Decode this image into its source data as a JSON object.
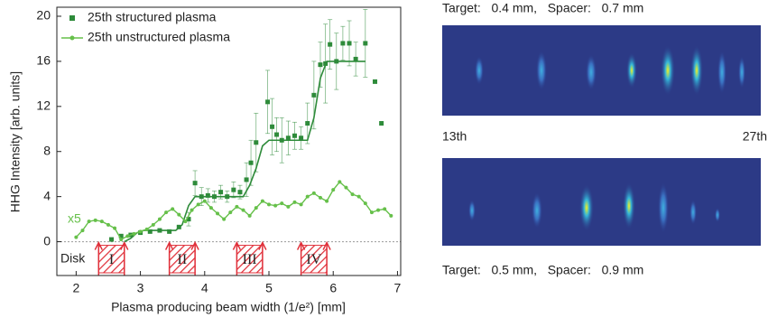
{
  "chart_data": {
    "type": "scatter-line",
    "xlabel": "Plasma producing beam width (1/e²) [mm]",
    "ylabel": "HHG Intensity [arb. units]",
    "xlim": [
      1.7,
      7.05
    ],
    "ylim": [
      -3,
      20.8
    ],
    "xticks": [
      2,
      3,
      4,
      5,
      6,
      7
    ],
    "yticks": [
      0,
      4,
      8,
      12,
      16,
      20
    ],
    "series": [
      {
        "name": "25th structured plasma",
        "color": "#2e8b3a",
        "marker": "square",
        "x": [
          2.55,
          2.7,
          2.85,
          3.0,
          3.15,
          3.3,
          3.45,
          3.6,
          3.75,
          3.85,
          3.95,
          4.05,
          4.15,
          4.25,
          4.35,
          4.45,
          4.55,
          4.65,
          4.72,
          4.8,
          4.98,
          5.05,
          5.12,
          5.2,
          5.3,
          5.4,
          5.5,
          5.6,
          5.7,
          5.8,
          5.88,
          5.95,
          6.05,
          6.15,
          6.25,
          6.35,
          6.5,
          6.65,
          6.75
        ],
        "values": [
          0.2,
          0.5,
          0.6,
          0.8,
          0.9,
          1.0,
          0.9,
          1.3,
          2.0,
          5.2,
          4.0,
          4.1,
          4.0,
          4.4,
          4.0,
          4.6,
          4.4,
          5.5,
          7.0,
          8.8,
          12.4,
          10.2,
          9.5,
          9.0,
          9.2,
          9.4,
          9.2,
          10.5,
          13.0,
          15.7,
          15.8,
          17.5,
          16.0,
          17.6,
          17.6,
          16.2,
          17.6,
          14.2,
          10.5
        ],
        "errors": [
          null,
          null,
          null,
          null,
          null,
          null,
          null,
          null,
          0.6,
          1.1,
          0.8,
          0.6,
          0.5,
          0.6,
          0.5,
          0.7,
          0.6,
          1.5,
          2.0,
          2.6,
          2.8,
          2.5,
          1.5,
          2.0,
          1.5,
          1.2,
          1.0,
          1.8,
          3.0,
          2.0,
          3.5,
          2.2,
          2.5,
          1.5,
          2.0,
          1.5,
          3.0,
          null,
          null
        ]
      },
      {
        "name": "25th unstructured plasma",
        "color": "#66c04a",
        "marker": "circle-line",
        "x": [
          2.0,
          2.1,
          2.2,
          2.3,
          2.4,
          2.5,
          2.6,
          2.7,
          2.8,
          2.9,
          3.0,
          3.1,
          3.2,
          3.3,
          3.4,
          3.5,
          3.6,
          3.7,
          3.8,
          3.9,
          4.0,
          4.1,
          4.2,
          4.3,
          4.4,
          4.5,
          4.6,
          4.7,
          4.8,
          4.9,
          5.0,
          5.1,
          5.2,
          5.3,
          5.4,
          5.5,
          5.6,
          5.7,
          5.8,
          5.9,
          6.0,
          6.1,
          6.2,
          6.3,
          6.4,
          6.5,
          6.6,
          6.7,
          6.8,
          6.9
        ],
        "values": [
          0.4,
          1.0,
          1.8,
          1.9,
          1.8,
          1.5,
          1.2,
          0.2,
          0.5,
          0.7,
          0.9,
          1.1,
          1.5,
          2.0,
          2.6,
          2.9,
          2.4,
          1.8,
          2.8,
          3.3,
          3.6,
          3.0,
          2.5,
          2.0,
          2.6,
          3.1,
          2.8,
          2.3,
          3.0,
          3.6,
          3.3,
          3.2,
          3.4,
          3.1,
          3.5,
          3.3,
          4.0,
          4.3,
          3.9,
          3.6,
          4.6,
          5.3,
          4.8,
          4.2,
          4.0,
          3.4,
          2.6,
          2.8,
          2.9,
          2.3
        ]
      }
    ],
    "fit": {
      "color": "#2e8b3a",
      "x": [
        2.75,
        2.85,
        2.95,
        3.05,
        3.55,
        3.65,
        3.75,
        3.85,
        4.6,
        4.7,
        4.8,
        4.9,
        5.0,
        5.6,
        5.7,
        5.8,
        5.9,
        6.5
      ],
      "values": [
        0,
        0.3,
        0.8,
        1,
        1,
        1.5,
        3.2,
        4,
        4,
        5,
        6.5,
        8.5,
        9,
        9,
        11,
        14.5,
        16,
        16
      ]
    },
    "regions": [
      {
        "label": "I",
        "x": [
          2.35,
          2.75
        ]
      },
      {
        "label": "II",
        "x": [
          3.45,
          3.85
        ]
      },
      {
        "label": "III",
        "x": [
          4.5,
          4.9
        ]
      },
      {
        "label": "IV",
        "x": [
          5.5,
          5.9
        ]
      }
    ],
    "annotations": [
      "x5",
      "Disk"
    ]
  },
  "spectra": {
    "captions": [
      "Target:   0.4 mm,   Spacer:   0.7 mm",
      "Target:   0.5 mm,   Spacer:   0.9 mm"
    ],
    "orders": [
      "13th",
      "27th"
    ]
  }
}
